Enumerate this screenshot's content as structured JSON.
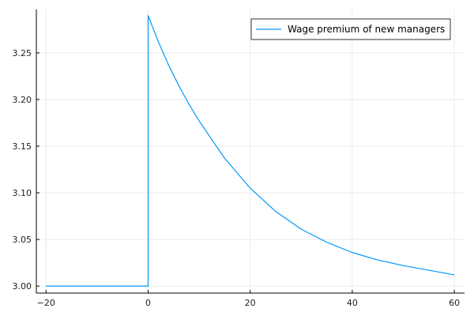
{
  "chart_data": {
    "type": "line",
    "title": "",
    "xlabel": "",
    "ylabel": "",
    "xlim": [
      -21.9,
      62
    ],
    "ylim": [
      2.9925,
      3.2965
    ],
    "x_ticks": [
      -20,
      0,
      20,
      40,
      60
    ],
    "x_tick_labels": [
      "−20",
      "0",
      "20",
      "40",
      "60"
    ],
    "y_ticks": [
      3.0,
      3.05,
      3.1,
      3.15,
      3.2,
      3.25
    ],
    "y_tick_labels": [
      "3.00",
      "3.05",
      "3.10",
      "3.15",
      "3.20",
      "3.25"
    ],
    "grid": true,
    "legend": {
      "position": "top-right",
      "entries": [
        "Wage premium of new managers"
      ]
    },
    "series": [
      {
        "name": "Wage premium of new managers",
        "color": "#009AFA",
        "x": [
          -20,
          -10,
          0,
          0,
          2,
          4,
          6,
          8,
          10,
          15,
          20,
          25,
          30,
          35,
          40,
          45,
          50,
          55,
          60
        ],
        "y": [
          3.0,
          3.0,
          3.0,
          3.29,
          3.262,
          3.237,
          3.215,
          3.195,
          3.177,
          3.137,
          3.105,
          3.08,
          3.061,
          3.047,
          3.036,
          3.028,
          3.022,
          3.017,
          3.012
        ]
      }
    ]
  }
}
